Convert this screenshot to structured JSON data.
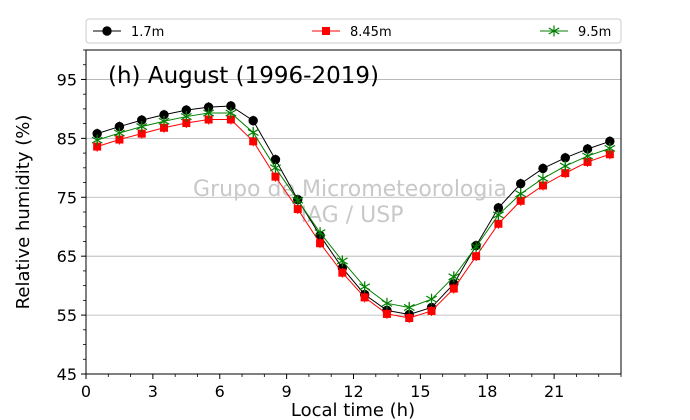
{
  "chart_data": {
    "type": "line",
    "title": "(h) August (1996-2019)",
    "xlabel": "Local time (h)",
    "ylabel": "Relative humidity (%)",
    "xlim": [
      0,
      24
    ],
    "ylim": [
      45,
      100
    ],
    "xticks": [
      0,
      3,
      6,
      9,
      12,
      15,
      18,
      21
    ],
    "yticks": [
      45,
      55,
      65,
      75,
      85,
      95
    ],
    "grid": "horizontal",
    "legend_position": "top",
    "watermark": [
      "Grupo de Micrometeorologia",
      "IAG / USP"
    ],
    "x": [
      0.5,
      1.5,
      2.5,
      3.5,
      4.5,
      5.5,
      6.5,
      7.5,
      8.5,
      9.5,
      10.5,
      11.5,
      12.5,
      13.5,
      14.5,
      15.5,
      16.5,
      17.5,
      18.5,
      19.5,
      20.5,
      21.5,
      22.5,
      23.5
    ],
    "series": [
      {
        "name": "1.7m",
        "color": "#000000",
        "marker": "circle",
        "values": [
          85.8,
          87.0,
          88.1,
          89.0,
          89.8,
          90.3,
          90.5,
          88.0,
          81.4,
          74.6,
          68.5,
          63.0,
          58.5,
          55.8,
          55.1,
          56.3,
          60.3,
          66.8,
          73.2,
          77.3,
          79.9,
          81.7,
          83.2,
          84.5
        ]
      },
      {
        "name": "8.45m",
        "color": "#ff0000",
        "marker": "square",
        "values": [
          83.6,
          84.8,
          85.8,
          86.8,
          87.6,
          88.2,
          88.2,
          84.5,
          78.5,
          73.0,
          67.2,
          62.2,
          58.0,
          55.2,
          54.5,
          55.7,
          59.5,
          65.0,
          70.5,
          74.4,
          77.0,
          79.1,
          81.0,
          82.3
        ]
      },
      {
        "name": "9.5m",
        "color": "#008000",
        "marker": "star",
        "values": [
          84.7,
          85.9,
          87.0,
          87.9,
          88.7,
          89.3,
          89.3,
          86.0,
          80.0,
          74.5,
          69.0,
          64.2,
          59.8,
          57.0,
          56.3,
          57.7,
          61.5,
          66.6,
          72.0,
          75.6,
          78.2,
          80.3,
          82.0,
          83.3
        ]
      }
    ]
  }
}
